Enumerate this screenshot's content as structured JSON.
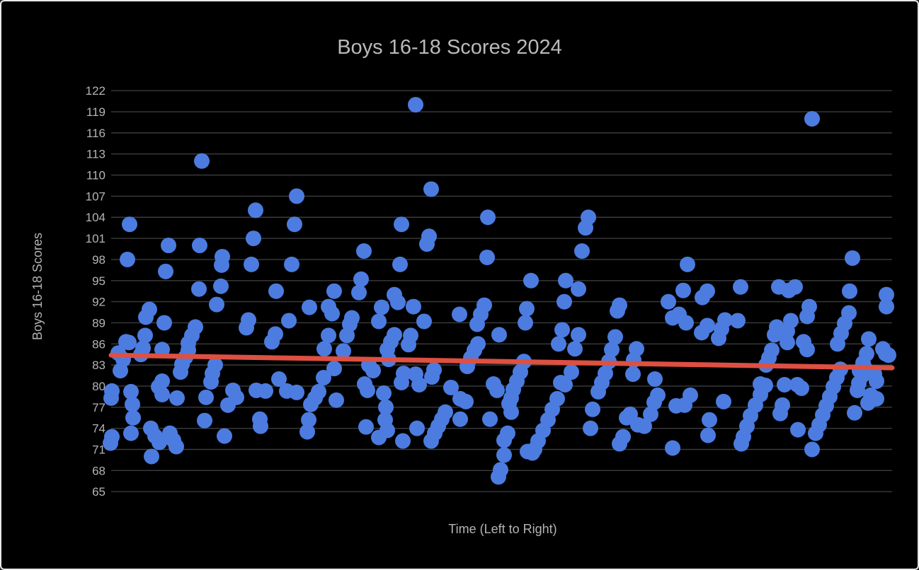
{
  "frame": {
    "background": "#000000",
    "border_color": "#e9e9e9"
  },
  "chart_data": {
    "type": "scatter",
    "title": "Boys 16-18 Scores 2024",
    "xlabel": "Time (Left to Right)",
    "ylabel": "Boys 16-18 Scores",
    "x_axis_tick_labels": "none (unlabeled time sequence)",
    "ylim": [
      65,
      122
    ],
    "y_tick_step": 3,
    "y_ticks": [
      122,
      119,
      116,
      113,
      110,
      107,
      104,
      101,
      98,
      95,
      92,
      89,
      86,
      83,
      80,
      77,
      74,
      71,
      68,
      65
    ],
    "grid": "horizontal only",
    "legend": "none",
    "colors": {
      "point": "#4c7ce0",
      "trendline": "#dd5042",
      "gridline": "#3c3c3c",
      "text": "#b4b4b4",
      "title_text": "#b9b9b9",
      "background": "#000000"
    },
    "trendline": {
      "description": "linear trend, slightly decreasing left to right",
      "start_value": 84.4,
      "end_value": 82.6
    },
    "points_format": "[x_position_px_across_plot, score_value]",
    "points": [
      [
        283,
        112
      ],
      [
        417,
        107
      ],
      [
        359,
        105
      ],
      [
        181,
        103
      ],
      [
        414,
        103
      ],
      [
        356,
        101
      ],
      [
        236,
        100
      ],
      [
        280,
        100
      ],
      [
        178,
        98
      ],
      [
        312,
        98.4
      ],
      [
        311,
        97.2
      ],
      [
        353,
        97.3
      ],
      [
        410,
        97.3
      ],
      [
        232,
        96.3
      ],
      [
        585,
        120
      ],
      [
        607,
        108
      ],
      [
        687,
        104
      ],
      [
        565,
        103
      ],
      [
        604,
        101.3
      ],
      [
        601,
        100.2
      ],
      [
        512,
        99.2
      ],
      [
        563,
        97.3
      ],
      [
        686,
        98.3
      ],
      [
        508,
        95.2
      ],
      [
        829,
        104
      ],
      [
        825,
        102.5
      ],
      [
        820,
        99.2
      ],
      [
        969,
        97.3
      ],
      [
        748,
        95
      ],
      [
        797,
        95
      ],
      [
        1145,
        118
      ],
      [
        1202,
        98.2
      ],
      [
        279,
        93.8
      ],
      [
        310,
        94.2
      ],
      [
        388,
        93.5
      ],
      [
        470,
        93.5
      ],
      [
        505,
        93.3
      ],
      [
        555,
        93
      ],
      [
        815,
        93.8
      ],
      [
        963,
        93.6
      ],
      [
        990,
        92.6
      ],
      [
        997,
        93.5
      ],
      [
        1044,
        94.1
      ],
      [
        1098,
        94.1
      ],
      [
        1112,
        93.6
      ],
      [
        1121,
        94.1
      ],
      [
        1198,
        93.5
      ],
      [
        1250,
        93
      ],
      [
        304,
        91.6
      ],
      [
        209,
        90.9
      ],
      [
        204,
        89.8
      ],
      [
        230,
        89
      ],
      [
        349,
        89.4
      ],
      [
        346,
        88.3
      ],
      [
        406,
        89.3
      ],
      [
        274,
        88.4
      ],
      [
        269,
        87.2
      ],
      [
        264,
        86.1
      ],
      [
        203,
        87.2
      ],
      [
        387,
        87.4
      ],
      [
        382,
        86.3
      ],
      [
        176,
        86.3
      ],
      [
        180,
        86.2
      ],
      [
        200,
        85.4
      ],
      [
        227,
        85.2
      ],
      [
        197,
        84.5
      ],
      [
        264,
        85.1
      ],
      [
        260,
        84.1
      ],
      [
        255,
        83.1
      ],
      [
        253,
        82
      ],
      [
        302,
        83
      ],
      [
        298,
        81.8
      ],
      [
        296,
        80.6
      ],
      [
        227,
        80.7
      ],
      [
        165,
        84.7
      ],
      [
        172,
        83.8
      ],
      [
        168,
        82.2
      ],
      [
        222,
        79.9
      ],
      [
        227,
        78.8
      ],
      [
        248,
        78.3
      ],
      [
        289,
        78.4
      ],
      [
        327,
        79.4
      ],
      [
        332,
        78.4
      ],
      [
        360,
        79.4
      ],
      [
        373,
        79.3
      ],
      [
        392,
        81
      ],
      [
        403,
        79.3
      ],
      [
        417,
        79.1
      ],
      [
        156,
        79.3
      ],
      [
        155,
        78.3
      ],
      [
        183,
        79.2
      ],
      [
        185,
        77.4
      ],
      [
        186,
        75.5
      ],
      [
        320,
        77.3
      ],
      [
        287,
        75.1
      ],
      [
        365,
        75.3
      ],
      [
        366,
        74.3
      ],
      [
        211,
        74
      ],
      [
        217,
        72.9
      ],
      [
        223,
        72
      ],
      [
        238,
        73.3
      ],
      [
        243,
        72.3
      ],
      [
        247,
        71.4
      ],
      [
        315,
        72.9
      ],
      [
        183,
        73.3
      ],
      [
        156,
        72.8
      ],
      [
        154,
        71.9
      ],
      [
        212,
        70
      ],
      [
        560,
        91.9
      ],
      [
        537,
        91.2
      ],
      [
        533,
        89.2
      ],
      [
        582,
        91.3
      ],
      [
        597,
        89.2
      ],
      [
        462,
        91.3
      ],
      [
        467,
        90.3
      ],
      [
        435,
        91.2
      ],
      [
        495,
        89.7
      ],
      [
        492,
        88.8
      ],
      [
        647,
        90.2
      ],
      [
        682,
        91.5
      ],
      [
        677,
        90.2
      ],
      [
        672,
        88.8
      ],
      [
        703,
        87.3
      ],
      [
        462,
        87.2
      ],
      [
        488,
        87.2
      ],
      [
        555,
        87.3
      ],
      [
        550,
        86.3
      ],
      [
        545,
        85.2
      ],
      [
        578,
        87.2
      ],
      [
        575,
        85.9
      ],
      [
        456,
        85.3
      ],
      [
        470,
        82.5
      ],
      [
        455,
        81.2
      ],
      [
        448,
        79.2
      ],
      [
        443,
        78.3
      ],
      [
        437,
        77.4
      ],
      [
        434,
        75.2
      ],
      [
        432,
        73.5
      ],
      [
        483,
        85
      ],
      [
        473,
        78
      ],
      [
        519,
        83
      ],
      [
        525,
        82.2
      ],
      [
        513,
        80.3
      ],
      [
        517,
        79.4
      ],
      [
        547,
        83.8
      ],
      [
        568,
        81.8
      ],
      [
        565,
        80.5
      ],
      [
        585,
        81.7
      ],
      [
        590,
        80.2
      ],
      [
        611,
        82.3
      ],
      [
        608,
        81.3
      ],
      [
        607,
        72.2
      ],
      [
        612,
        73.3
      ],
      [
        617,
        74.3
      ],
      [
        622,
        75.3
      ],
      [
        627,
        76.3
      ],
      [
        635,
        79.8
      ],
      [
        663,
        84
      ],
      [
        668,
        85.1
      ],
      [
        673,
        86
      ],
      [
        658,
        82.8
      ],
      [
        695,
        80.3
      ],
      [
        700,
        79.4
      ],
      [
        648,
        78.2
      ],
      [
        656,
        77.8
      ],
      [
        648,
        75.3
      ],
      [
        587,
        74
      ],
      [
        540,
        79
      ],
      [
        543,
        77
      ],
      [
        542,
        75.2
      ],
      [
        545,
        73.7
      ],
      [
        533,
        72.7
      ],
      [
        515,
        74.2
      ],
      [
        567,
        72.2
      ],
      [
        690,
        75.3
      ],
      [
        720,
        76.3
      ],
      [
        942,
        92
      ],
      [
        795,
        92
      ],
      [
        742,
        91
      ],
      [
        740,
        89
      ],
      [
        957,
        90.2
      ],
      [
        948,
        89.7
      ],
      [
        967,
        89
      ],
      [
        792,
        88
      ],
      [
        787,
        86
      ],
      [
        815,
        87.3
      ],
      [
        810,
        85.3
      ],
      [
        805,
        82
      ],
      [
        867,
        87
      ],
      [
        862,
        85.2
      ],
      [
        858,
        83.5
      ],
      [
        853,
        81.8
      ],
      [
        848,
        80.5
      ],
      [
        843,
        79.2
      ],
      [
        897,
        85.3
      ],
      [
        893,
        83.7
      ],
      [
        892,
        81.7
      ],
      [
        923,
        81
      ],
      [
        927,
        78.7
      ],
      [
        922,
        77.7
      ],
      [
        953,
        77.2
      ],
      [
        965,
        77.3
      ],
      [
        973,
        78.7
      ],
      [
        888,
        76
      ],
      [
        883,
        75.5
      ],
      [
        917,
        76
      ],
      [
        899,
        74.5
      ],
      [
        908,
        74.3
      ],
      [
        835,
        76.7
      ],
      [
        832,
        74
      ],
      [
        878,
        72.8
      ],
      [
        873,
        71.8
      ],
      [
        948,
        71.2
      ],
      [
        738,
        83.5
      ],
      [
        733,
        82
      ],
      [
        728,
        80.7
      ],
      [
        723,
        79.5
      ],
      [
        720,
        78.3
      ],
      [
        717,
        77.5
      ],
      [
        743,
        70.7
      ],
      [
        750,
        70.5
      ],
      [
        785,
        78.2
      ],
      [
        778,
        76.7
      ],
      [
        772,
        75.2
      ],
      [
        765,
        73.7
      ],
      [
        758,
        72.2
      ],
      [
        753,
        71
      ],
      [
        790,
        80.5
      ],
      [
        796,
        80.2
      ],
      [
        873,
        91.5
      ],
      [
        870,
        90.7
      ],
      [
        989,
        87.6
      ],
      [
        715,
        73.3
      ],
      [
        710,
        72.3
      ],
      [
        710,
        70.2
      ],
      [
        705,
        68.1
      ],
      [
        702,
        67.1
      ],
      [
        1141,
        91.3
      ],
      [
        1138,
        89.9
      ],
      [
        1022,
        89.4
      ],
      [
        1017,
        88.1
      ],
      [
        1013,
        86.8
      ],
      [
        997,
        88.6
      ],
      [
        1040,
        89.3
      ],
      [
        1095,
        88.4
      ],
      [
        1092,
        87.3
      ],
      [
        1115,
        89.3
      ],
      [
        1110,
        87.8
      ],
      [
        1110,
        86.2
      ],
      [
        1133,
        86.3
      ],
      [
        1138,
        85.2
      ],
      [
        1088,
        85.1
      ],
      [
        1084,
        84
      ],
      [
        1080,
        83
      ],
      [
        1197,
        90.4
      ],
      [
        1191,
        88.9
      ],
      [
        1186,
        87.5
      ],
      [
        1181,
        86
      ],
      [
        1225,
        86.7
      ],
      [
        1245,
        85.3
      ],
      [
        1249,
        84.6
      ],
      [
        1222,
        84.6
      ],
      [
        1217,
        83.3
      ],
      [
        1212,
        82.2
      ],
      [
        1220,
        82.5
      ],
      [
        1216,
        81.5
      ],
      [
        1233,
        81.7
      ],
      [
        1236,
        80.7
      ],
      [
        1150,
        73.3
      ],
      [
        1155,
        74.5
      ],
      [
        1160,
        75.9
      ],
      [
        1165,
        77.2
      ],
      [
        1170,
        78.5
      ],
      [
        1175,
        79.9
      ],
      [
        1180,
        81.2
      ],
      [
        1185,
        82.4
      ],
      [
        1211,
        80.4
      ],
      [
        1209,
        79.4
      ],
      [
        1228,
        78.7
      ],
      [
        1236,
        78.2
      ],
      [
        1224,
        77.6
      ],
      [
        1072,
        80.3
      ],
      [
        1079,
        80.1
      ],
      [
        1106,
        80.2
      ],
      [
        1124,
        80.2
      ],
      [
        1130,
        79.7
      ],
      [
        1072,
        78.8
      ],
      [
        1065,
        77.3
      ],
      [
        1058,
        75.8
      ],
      [
        1053,
        74.3
      ],
      [
        1048,
        72.8
      ],
      [
        1045,
        71.8
      ],
      [
        1103,
        77.3
      ],
      [
        1100,
        76.1
      ],
      [
        1125,
        73.8
      ],
      [
        1145,
        71
      ],
      [
        1000,
        75.2
      ],
      [
        998,
        73
      ],
      [
        1020,
        77.8
      ],
      [
        1205,
        76.2
      ],
      [
        1253,
        84.4
      ],
      [
        1250,
        91.3
      ]
    ]
  }
}
